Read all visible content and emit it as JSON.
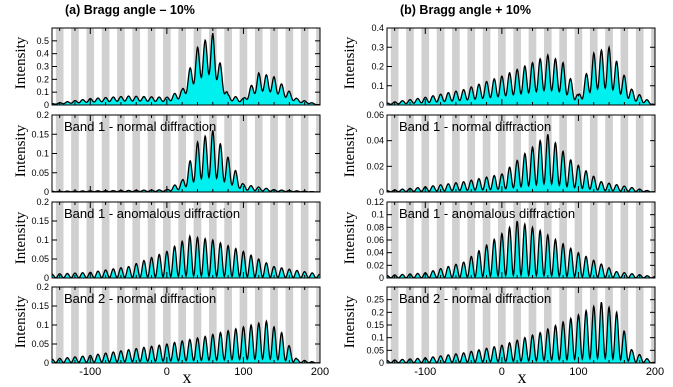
{
  "figure": {
    "columns": [
      {
        "title": "(a) Bragg angle –  10%"
      },
      {
        "title": "(b) Bragg angle +  10%"
      }
    ],
    "x_axis_label": "x",
    "y_axis_label": "Intensity",
    "x_tick_labels": [
      "-100",
      "0",
      "100",
      "200"
    ]
  },
  "colors": {
    "fill": "#00f0f0",
    "stripe": "#d0d0d0",
    "line": "#000000"
  },
  "chart_data": [
    {
      "type": "area",
      "column": 0,
      "row": 0,
      "annotation": "",
      "xlim": [
        -150,
        200
      ],
      "ylim": [
        0,
        0.6
      ],
      "yticks": [
        0,
        0.1,
        0.2,
        0.3,
        0.4,
        0.5
      ],
      "ytick_labels": [
        "0",
        "0.1",
        "0.2",
        "0.3",
        "0.4",
        "0.5"
      ],
      "envelope": [
        [
          -150,
          0.01
        ],
        [
          -100,
          0.05
        ],
        [
          -50,
          0.07
        ],
        [
          0,
          0.06
        ],
        [
          20,
          0.12
        ],
        [
          40,
          0.45
        ],
        [
          60,
          0.56
        ],
        [
          80,
          0.08
        ],
        [
          100,
          0.05
        ],
        [
          120,
          0.25
        ],
        [
          140,
          0.22
        ],
        [
          170,
          0.05
        ],
        [
          200,
          0.0
        ]
      ],
      "oscillation_depth": 0.55
    },
    {
      "type": "area",
      "column": 0,
      "row": 1,
      "annotation": "Band 1 - normal diffraction",
      "xlim": [
        -150,
        200
      ],
      "ylim": [
        0,
        0.2
      ],
      "yticks": [
        0,
        0.05,
        0.1,
        0.15,
        0.2
      ],
      "ytick_labels": [
        "0",
        "0.05",
        "0.1",
        "0.15",
        "0.2"
      ],
      "envelope": [
        [
          -150,
          0.002
        ],
        [
          -100,
          0.003
        ],
        [
          -50,
          0.004
        ],
        [
          0,
          0.006
        ],
        [
          20,
          0.03
        ],
        [
          40,
          0.13
        ],
        [
          60,
          0.16
        ],
        [
          80,
          0.09
        ],
        [
          100,
          0.02
        ],
        [
          140,
          0.006
        ],
        [
          200,
          0.0
        ]
      ],
      "oscillation_depth": 0.75
    },
    {
      "type": "area",
      "column": 0,
      "row": 2,
      "annotation": "Band 1 - anomalous diffraction",
      "xlim": [
        -150,
        200
      ],
      "ylim": [
        0,
        0.2
      ],
      "yticks": [
        0,
        0.05,
        0.1,
        0.15,
        0.2
      ],
      "ytick_labels": [
        "0",
        "0.05",
        "0.1",
        "0.15",
        "0.2"
      ],
      "envelope": [
        [
          -150,
          0.01
        ],
        [
          -100,
          0.015
        ],
        [
          -50,
          0.03
        ],
        [
          0,
          0.07
        ],
        [
          30,
          0.11
        ],
        [
          60,
          0.1
        ],
        [
          100,
          0.07
        ],
        [
          140,
          0.03
        ],
        [
          200,
          0.01
        ]
      ],
      "oscillation_depth": 0.95
    },
    {
      "type": "area",
      "column": 0,
      "row": 3,
      "annotation": "Band 2 - normal diffraction",
      "xlim": [
        -150,
        200
      ],
      "ylim": [
        0,
        0.2
      ],
      "yticks": [
        0,
        0.05,
        0.1,
        0.15,
        0.2
      ],
      "ytick_labels": [
        "0",
        "0.05",
        "0.1",
        "0.15",
        "0.2"
      ],
      "envelope": [
        [
          -150,
          0.01
        ],
        [
          -100,
          0.02
        ],
        [
          -50,
          0.035
        ],
        [
          0,
          0.05
        ],
        [
          50,
          0.07
        ],
        [
          100,
          0.095
        ],
        [
          130,
          0.11
        ],
        [
          150,
          0.08
        ],
        [
          170,
          0.01
        ],
        [
          200,
          0.0
        ]
      ],
      "oscillation_depth": 0.9
    },
    {
      "type": "area",
      "column": 1,
      "row": 0,
      "annotation": "",
      "xlim": [
        -150,
        200
      ],
      "ylim": [
        0,
        0.4
      ],
      "yticks": [
        0,
        0.1,
        0.2,
        0.3,
        0.4
      ],
      "ytick_labels": [
        "0",
        "0.1",
        "0.2",
        "0.3",
        "0.4"
      ],
      "envelope": [
        [
          -150,
          0.01
        ],
        [
          -100,
          0.04
        ],
        [
          -50,
          0.08
        ],
        [
          0,
          0.15
        ],
        [
          40,
          0.22
        ],
        [
          60,
          0.26
        ],
        [
          80,
          0.22
        ],
        [
          100,
          0.05
        ],
        [
          120,
          0.27
        ],
        [
          140,
          0.3
        ],
        [
          170,
          0.08
        ],
        [
          200,
          0.0
        ]
      ],
      "oscillation_depth": 0.7
    },
    {
      "type": "area",
      "column": 1,
      "row": 1,
      "annotation": "Band 1 - normal diffraction",
      "xlim": [
        -150,
        200
      ],
      "ylim": [
        0,
        0.06
      ],
      "yticks": [
        0,
        0.02,
        0.04,
        0.06
      ],
      "ytick_labels": [
        "0",
        "0.02",
        "0.04",
        "0.06"
      ],
      "envelope": [
        [
          -150,
          0.001
        ],
        [
          -100,
          0.004
        ],
        [
          -50,
          0.008
        ],
        [
          0,
          0.014
        ],
        [
          30,
          0.03
        ],
        [
          60,
          0.045
        ],
        [
          90,
          0.025
        ],
        [
          130,
          0.008
        ],
        [
          200,
          0.0
        ]
      ],
      "oscillation_depth": 0.85
    },
    {
      "type": "area",
      "column": 1,
      "row": 2,
      "annotation": "Band 1 - anomalous diffraction",
      "xlim": [
        -150,
        200
      ],
      "ylim": [
        0,
        0.12
      ],
      "yticks": [
        0,
        0.02,
        0.04,
        0.06,
        0.08,
        0.1,
        0.12
      ],
      "ytick_labels": [
        "0",
        "0.02",
        "0.04",
        "0.06",
        "0.08",
        "0.1",
        "0.12"
      ],
      "envelope": [
        [
          -150,
          0.004
        ],
        [
          -100,
          0.008
        ],
        [
          -50,
          0.025
        ],
        [
          0,
          0.07
        ],
        [
          20,
          0.09
        ],
        [
          50,
          0.075
        ],
        [
          100,
          0.04
        ],
        [
          150,
          0.01
        ],
        [
          200,
          0.002
        ]
      ],
      "oscillation_depth": 0.95
    },
    {
      "type": "area",
      "column": 1,
      "row": 3,
      "annotation": "Band 2 - normal diffraction",
      "xlim": [
        -150,
        200
      ],
      "ylim": [
        0,
        0.3
      ],
      "yticks": [
        0,
        0.05,
        0.1,
        0.15,
        0.2,
        0.25
      ],
      "ytick_labels": [
        "0",
        "0.05",
        "0.1",
        "0.15",
        "0.2",
        "0.25"
      ],
      "envelope": [
        [
          -150,
          0.01
        ],
        [
          -100,
          0.02
        ],
        [
          -50,
          0.04
        ],
        [
          0,
          0.07
        ],
        [
          50,
          0.12
        ],
        [
          100,
          0.19
        ],
        [
          130,
          0.24
        ],
        [
          150,
          0.2
        ],
        [
          170,
          0.05
        ],
        [
          200,
          0.0
        ]
      ],
      "oscillation_depth": 0.92
    }
  ]
}
